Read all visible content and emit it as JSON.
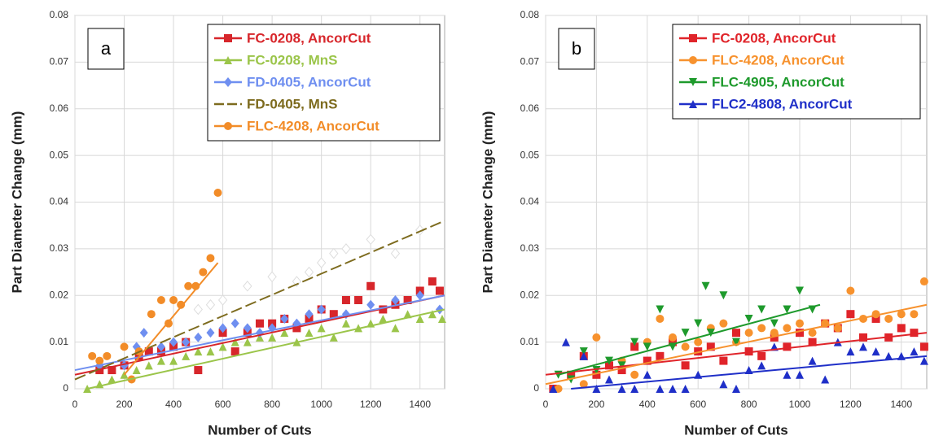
{
  "chart_data": [
    {
      "type": "scatter",
      "panel_label": "a",
      "xlabel": "Number of Cuts",
      "ylabel": "Part Diameter Change (mm)",
      "xlim": [
        0,
        1500
      ],
      "xticks": [
        0,
        200,
        400,
        600,
        800,
        1000,
        1200,
        1400
      ],
      "ylim": [
        0,
        0.08
      ],
      "yticks": [
        0,
        0.01,
        0.02,
        0.03,
        0.04,
        0.05,
        0.06,
        0.07,
        0.08
      ],
      "grid": true,
      "legend": "upper right",
      "series": [
        {
          "name": "FC-0208, AncorCut",
          "color": "#d7262b",
          "marker": "square",
          "x": [
            100,
            150,
            200,
            260,
            300,
            350,
            400,
            450,
            500,
            600,
            650,
            700,
            750,
            800,
            850,
            900,
            950,
            1000,
            1050,
            1100,
            1150,
            1200,
            1250,
            1300,
            1350,
            1400,
            1450,
            1480
          ],
          "values": [
            0.004,
            0.004,
            0.005,
            0.007,
            0.008,
            0.008,
            0.009,
            0.01,
            0.004,
            0.012,
            0.008,
            0.012,
            0.014,
            0.014,
            0.015,
            0.013,
            0.015,
            0.017,
            0.016,
            0.019,
            0.019,
            0.022,
            0.017,
            0.018,
            0.019,
            0.021,
            0.023,
            0.021
          ],
          "trend": {
            "x": [
              0,
              1500
            ],
            "values": [
              0.003,
              0.02
            ]
          }
        },
        {
          "name": "FC-0208, MnS",
          "color": "#9bc54a",
          "marker": "triangle",
          "x": [
            50,
            100,
            150,
            200,
            250,
            300,
            350,
            400,
            450,
            500,
            550,
            600,
            650,
            700,
            750,
            800,
            850,
            900,
            950,
            1000,
            1050,
            1100,
            1150,
            1200,
            1250,
            1300,
            1350,
            1400,
            1450,
            1490
          ],
          "values": [
            0,
            0.001,
            0.002,
            0.003,
            0.004,
            0.005,
            0.006,
            0.006,
            0.007,
            0.008,
            0.008,
            0.009,
            0.01,
            0.01,
            0.011,
            0.011,
            0.012,
            0.01,
            0.012,
            0.013,
            0.011,
            0.014,
            0.013,
            0.014,
            0.015,
            0.013,
            0.016,
            0.015,
            0.016,
            0.015
          ],
          "trend": {
            "x": [
              50,
              1500
            ],
            "values": [
              0,
              0.017
            ]
          }
        },
        {
          "name": "FD-0405, AncorCut",
          "color": "#6f8ff0",
          "marker": "diamond",
          "x": [
            100,
            200,
            250,
            280,
            350,
            400,
            450,
            500,
            550,
            600,
            650,
            700,
            750,
            800,
            850,
            900,
            950,
            1000,
            1100,
            1200,
            1300,
            1400,
            1480
          ],
          "values": [
            0.005,
            0.005,
            0.009,
            0.012,
            0.009,
            0.01,
            0.01,
            0.011,
            0.012,
            0.013,
            0.014,
            0.013,
            0.012,
            0.013,
            0.015,
            0.014,
            0.016,
            0.017,
            0.016,
            0.018,
            0.019,
            0.02,
            0.017
          ],
          "trend": {
            "x": [
              0,
              1500
            ],
            "values": [
              0.004,
              0.02
            ]
          }
        },
        {
          "name": "FD-0405, MnS",
          "color": "#7d6b1e",
          "marker": "hollow-diamond",
          "dashed": true,
          "x": [
            500,
            550,
            600,
            700,
            800,
            900,
            950,
            1000,
            1050,
            1100,
            1200,
            1300,
            1400
          ],
          "values": [
            0.017,
            0.018,
            0.019,
            0.022,
            0.024,
            0.023,
            0.025,
            0.027,
            0.029,
            0.03,
            0.032,
            0.029,
            0.034
          ],
          "trend": {
            "x": [
              0,
              1500
            ],
            "values": [
              0.002,
              0.036
            ]
          }
        },
        {
          "name": "FLC-4208, AncorCut",
          "color": "#f28c28",
          "marker": "circle",
          "x": [
            70,
            100,
            130,
            200,
            230,
            260,
            310,
            350,
            380,
            400,
            430,
            460,
            490,
            520,
            550,
            580
          ],
          "values": [
            0.007,
            0.006,
            0.007,
            0.009,
            0.002,
            0.008,
            0.016,
            0.019,
            0.014,
            0.019,
            0.018,
            0.022,
            0.022,
            0.025,
            0.028,
            0.042
          ],
          "trend": {
            "x": [
              200,
              580
            ],
            "values": [
              0.003,
              0.027
            ]
          }
        }
      ]
    },
    {
      "type": "scatter",
      "panel_label": "b",
      "xlabel": "Number of Cuts",
      "ylabel": "Part Diameter Change (mm)",
      "xlim": [
        0,
        1500
      ],
      "xticks": [
        0,
        200,
        400,
        600,
        800,
        1000,
        1200,
        1400
      ],
      "ylim": [
        0,
        0.08
      ],
      "yticks": [
        0,
        0.01,
        0.02,
        0.03,
        0.04,
        0.05,
        0.06,
        0.07,
        0.08
      ],
      "grid": true,
      "legend": "upper right",
      "series": [
        {
          "name": "FC-0208, AncorCut",
          "color": "#e0242a",
          "marker": "square",
          "x": [
            30,
            100,
            150,
            200,
            250,
            300,
            350,
            400,
            450,
            500,
            550,
            600,
            650,
            700,
            750,
            800,
            850,
            900,
            950,
            1000,
            1050,
            1100,
            1150,
            1200,
            1250,
            1300,
            1350,
            1400,
            1450,
            1490
          ],
          "values": [
            0.0,
            0.003,
            0.007,
            0.003,
            0.005,
            0.004,
            0.009,
            0.006,
            0.007,
            0.01,
            0.005,
            0.008,
            0.009,
            0.006,
            0.012,
            0.008,
            0.007,
            0.011,
            0.009,
            0.012,
            0.01,
            0.014,
            0.013,
            0.016,
            0.011,
            0.015,
            0.011,
            0.013,
            0.012,
            0.009
          ],
          "trend": {
            "x": [
              0,
              1500
            ],
            "values": [
              0.003,
              0.012
            ]
          }
        },
        {
          "name": "FLC-4208, AncorCut",
          "color": "#f7922e",
          "marker": "circle",
          "x": [
            50,
            150,
            200,
            300,
            350,
            400,
            450,
            500,
            550,
            600,
            650,
            700,
            750,
            800,
            850,
            900,
            950,
            1000,
            1050,
            1100,
            1150,
            1200,
            1250,
            1300,
            1350,
            1400,
            1450,
            1490
          ],
          "values": [
            0.0,
            0.001,
            0.011,
            0.006,
            0.003,
            0.01,
            0.015,
            0.011,
            0.009,
            0.01,
            0.013,
            0.014,
            0.01,
            0.012,
            0.013,
            0.012,
            0.013,
            0.014,
            0.012,
            0.014,
            0.013,
            0.021,
            0.015,
            0.016,
            0.015,
            0.016,
            0.016,
            0.023
          ],
          "trend": {
            "x": [
              0,
              1500
            ],
            "values": [
              0.001,
              0.018
            ]
          }
        },
        {
          "name": "FLC-4905, AncorCut",
          "color": "#1e9a2c",
          "marker": "triangle-down",
          "x": [
            50,
            100,
            150,
            200,
            250,
            300,
            350,
            400,
            450,
            500,
            550,
            600,
            630,
            650,
            700,
            750,
            800,
            850,
            900,
            950,
            1000,
            1050
          ],
          "values": [
            0.003,
            0.002,
            0.008,
            0.004,
            0.006,
            0.005,
            0.01,
            0.009,
            0.017,
            0.009,
            0.012,
            0.014,
            0.022,
            0.012,
            0.02,
            0.01,
            0.015,
            0.017,
            0.014,
            0.017,
            0.021,
            0.017
          ],
          "trend": {
            "x": [
              50,
              1080
            ],
            "values": [
              0.003,
              0.018
            ]
          }
        },
        {
          "name": "FLC2-4808, AncorCut",
          "color": "#1f2fc8",
          "marker": "triangle",
          "x": [
            30,
            80,
            150,
            200,
            250,
            300,
            350,
            400,
            450,
            500,
            550,
            600,
            700,
            750,
            800,
            850,
            900,
            950,
            1000,
            1050,
            1100,
            1150,
            1200,
            1250,
            1300,
            1350,
            1400,
            1450,
            1490
          ],
          "values": [
            0.0,
            0.01,
            0.007,
            0.0,
            0.002,
            0.0,
            0.0,
            0.003,
            0.0,
            0.0,
            0.0,
            0.003,
            0.001,
            0.0,
            0.004,
            0.005,
            0.009,
            0.003,
            0.003,
            0.006,
            0.002,
            0.01,
            0.008,
            0.009,
            0.008,
            0.007,
            0.007,
            0.008,
            0.006
          ],
          "trend": {
            "x": [
              100,
              1500
            ],
            "values": [
              0,
              0.007
            ]
          }
        }
      ]
    }
  ]
}
